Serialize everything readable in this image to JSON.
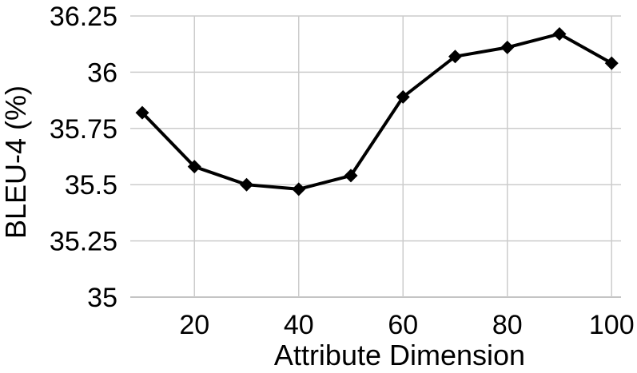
{
  "chart_data": {
    "type": "line",
    "title": "",
    "xlabel": "Attribute Dimension",
    "ylabel": "BLEU-4 (%)",
    "x": [
      10,
      20,
      30,
      40,
      50,
      60,
      70,
      80,
      90,
      100
    ],
    "y": [
      35.82,
      35.58,
      35.5,
      35.48,
      35.54,
      35.89,
      36.07,
      36.11,
      36.17,
      36.04
    ],
    "x_ticks": {
      "values": [
        20,
        40,
        60,
        80,
        100
      ],
      "labels": [
        "20",
        "40",
        "60",
        "80",
        "100"
      ]
    },
    "y_ticks": {
      "values": [
        35,
        35.25,
        35.5,
        35.75,
        36,
        36.25
      ],
      "labels": [
        "35",
        "35.25",
        "35.5",
        "35.75",
        "36",
        "36.25"
      ]
    },
    "xlim": [
      7.7,
      101.8
    ],
    "ylim": [
      35,
      36.25
    ],
    "grid": true,
    "legend": "none",
    "marker": "diamond",
    "colors": {
      "line": "#000000",
      "marker": "#000000",
      "grid": "#cccccc",
      "baseline": "#c4c4c4",
      "text": "#000000",
      "background": "#ffffff"
    }
  }
}
